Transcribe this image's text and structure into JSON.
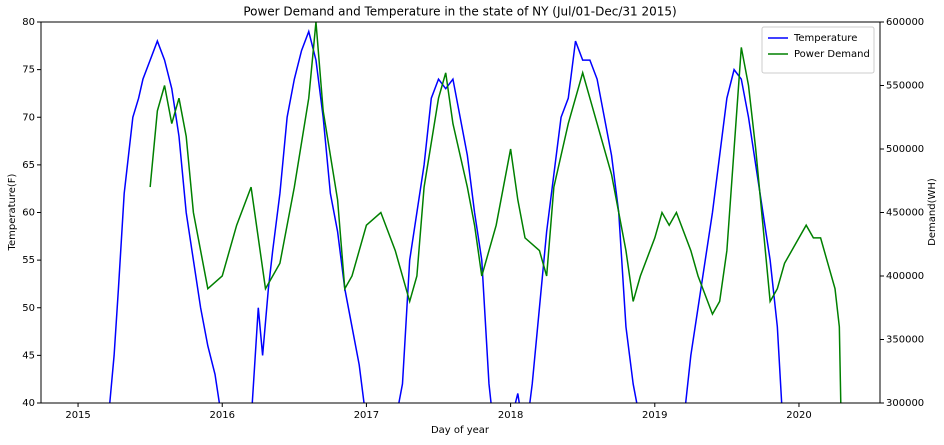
{
  "chart_data": {
    "type": "line",
    "title": "Power Demand and Temperature in the state of NY (Jul/01-Dec/31 2015)",
    "x_label": "Day of year",
    "y_label": "Temperature(F)",
    "y2_label": "Demand(WH)",
    "xlim": [
      2014.743,
      2020.562
    ],
    "xticks": [
      2015,
      2016,
      2017,
      2018,
      2019,
      2020
    ],
    "ylim": [
      40,
      80
    ],
    "yticks": [
      40,
      45,
      50,
      55,
      60,
      65,
      70,
      75,
      80
    ],
    "y2lim": [
      300000,
      600000
    ],
    "y2ticks": [
      300000,
      350000,
      400000,
      450000,
      500000,
      550000,
      600000
    ],
    "legend": "upper right",
    "series": [
      {
        "name": "Temperature",
        "color": "#0000ff",
        "axis": "y",
        "x": [
          2015.2,
          2015.22,
          2015.25,
          2015.28,
          2015.32,
          2015.35,
          2015.38,
          2015.42,
          2015.45,
          2015.5,
          2015.55,
          2015.6,
          2015.65,
          2015.7,
          2015.75,
          2015.8,
          2015.85,
          2015.9,
          2015.95,
          2016.0,
          2016.1,
          2016.2,
          2016.25,
          2016.28,
          2016.32,
          2016.35,
          2016.4,
          2016.45,
          2016.5,
          2016.55,
          2016.6,
          2016.65,
          2016.7,
          2016.75,
          2016.8,
          2016.85,
          2016.9,
          2016.95,
          2017.0,
          2017.1,
          2017.2,
          2017.25,
          2017.3,
          2017.35,
          2017.4,
          2017.45,
          2017.5,
          2017.55,
          2017.6,
          2017.65,
          2017.7,
          2017.75,
          2017.8,
          2017.85,
          2017.9,
          2018.0,
          2018.05,
          2018.1,
          2018.15,
          2018.2,
          2018.25,
          2018.3,
          2018.35,
          2018.4,
          2018.45,
          2018.5,
          2018.55,
          2018.6,
          2018.65,
          2018.7,
          2018.75,
          2018.8,
          2018.85,
          2018.9,
          2019.0,
          2019.1,
          2019.2,
          2019.25,
          2019.3,
          2019.35,
          2019.4,
          2019.45,
          2019.5,
          2019.55,
          2019.6,
          2019.65,
          2019.7,
          2019.75,
          2019.8,
          2019.85,
          2019.88,
          2019.9
        ],
        "values": [
          36,
          40,
          45,
          52,
          62,
          66,
          70,
          72,
          74,
          76,
          78,
          76,
          73,
          68,
          60,
          55,
          50,
          46,
          43,
          38,
          35,
          38,
          50,
          45,
          52,
          56,
          62,
          70,
          74,
          77,
          79,
          76,
          70,
          62,
          58,
          52,
          48,
          44,
          38,
          35,
          38,
          42,
          55,
          60,
          65,
          72,
          74,
          73,
          74,
          70,
          66,
          60,
          55,
          42,
          35,
          38,
          41,
          36,
          42,
          50,
          58,
          64,
          70,
          72,
          78,
          76,
          76,
          74,
          70,
          66,
          60,
          48,
          42,
          38,
          35,
          36,
          38,
          45,
          50,
          55,
          60,
          66,
          72,
          75,
          74,
          70,
          65,
          60,
          55,
          48,
          40,
          35
        ]
      },
      {
        "name": "Power Demand",
        "color": "#008000",
        "axis": "y2",
        "x": [
          2015.5,
          2015.55,
          2015.6,
          2015.65,
          2015.7,
          2015.75,
          2015.8,
          2015.9,
          2016.0,
          2016.1,
          2016.2,
          2016.3,
          2016.4,
          2016.5,
          2016.6,
          2016.65,
          2016.7,
          2016.8,
          2016.85,
          2016.9,
          2017.0,
          2017.1,
          2017.2,
          2017.3,
          2017.35,
          2017.4,
          2017.5,
          2017.55,
          2017.6,
          2017.7,
          2017.75,
          2017.8,
          2017.9,
          2018.0,
          2018.05,
          2018.1,
          2018.2,
          2018.25,
          2018.3,
          2018.4,
          2018.5,
          2018.55,
          2018.6,
          2018.7,
          2018.8,
          2018.85,
          2018.9,
          2019.0,
          2019.05,
          2019.1,
          2019.15,
          2019.25,
          2019.3,
          2019.4,
          2019.45,
          2019.5,
          2019.55,
          2019.6,
          2019.65,
          2019.7,
          2019.75,
          2019.8,
          2019.85,
          2019.9,
          2020.0,
          2020.05,
          2020.1,
          2020.15,
          2020.2,
          2020.25,
          2020.28,
          2020.29
        ],
        "values": [
          470000,
          530000,
          550000,
          520000,
          540000,
          510000,
          450000,
          390000,
          400000,
          440000,
          470000,
          390000,
          410000,
          470000,
          540000,
          600000,
          530000,
          460000,
          390000,
          400000,
          440000,
          450000,
          420000,
          380000,
          400000,
          470000,
          540000,
          560000,
          520000,
          470000,
          440000,
          400000,
          440000,
          500000,
          460000,
          430000,
          420000,
          400000,
          470000,
          520000,
          560000,
          540000,
          520000,
          480000,
          420000,
          380000,
          400000,
          430000,
          450000,
          440000,
          450000,
          420000,
          400000,
          370000,
          380000,
          420000,
          500000,
          580000,
          550000,
          500000,
          440000,
          380000,
          390000,
          410000,
          430000,
          440000,
          430000,
          430000,
          410000,
          390000,
          360000,
          300000
        ]
      }
    ]
  }
}
